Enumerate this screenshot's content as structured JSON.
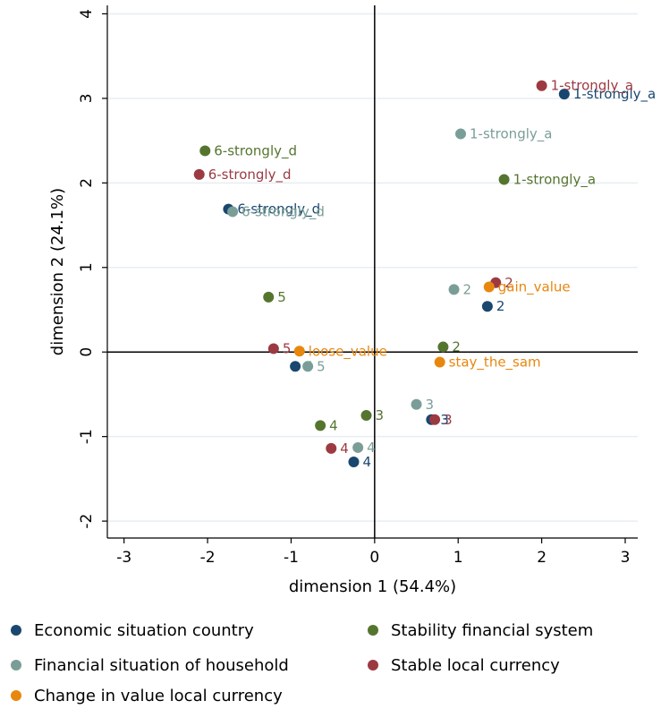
{
  "chart_data": {
    "type": "scatter",
    "xlabel": "dimension 1 (54.4%)",
    "ylabel": "dimension 2 (24.1%)",
    "xlim": [
      -3.2,
      3.15
    ],
    "ylim": [
      -2.2,
      4.1
    ],
    "xticks": [
      -3,
      -2,
      -1,
      0,
      1,
      2,
      3
    ],
    "yticks": [
      -2,
      -1,
      0,
      1,
      2,
      3,
      4
    ],
    "grid": "horizontal",
    "reference_lines": {
      "x": 0,
      "y": 0
    },
    "legend_position": "bottom",
    "series": [
      {
        "name": "Economic situation country",
        "color": "#1a476f",
        "points": [
          {
            "x": 2.27,
            "y": 3.05,
            "label": "1-strongly_a"
          },
          {
            "x": 1.35,
            "y": 0.54,
            "label": "2"
          },
          {
            "x": 0.68,
            "y": -0.8,
            "label": "3"
          },
          {
            "x": -0.25,
            "y": -1.3,
            "label": "4"
          },
          {
            "x": -0.95,
            "y": -0.17,
            "label": "5"
          },
          {
            "x": -1.75,
            "y": 1.69,
            "label": "6-strongly_d"
          }
        ]
      },
      {
        "name": "Stability financial system",
        "color": "#55752f",
        "points": [
          {
            "x": 1.55,
            "y": 2.04,
            "label": "1-strongly_a"
          },
          {
            "x": 0.82,
            "y": 0.06,
            "label": "2"
          },
          {
            "x": -0.1,
            "y": -0.75,
            "label": "3"
          },
          {
            "x": -0.65,
            "y": -0.87,
            "label": "4"
          },
          {
            "x": -1.27,
            "y": 0.65,
            "label": "5"
          },
          {
            "x": -2.03,
            "y": 2.38,
            "label": "6-strongly_d"
          }
        ]
      },
      {
        "name": "Financial situation of household",
        "color": "#7a9e97",
        "points": [
          {
            "x": 1.03,
            "y": 2.58,
            "label": "1-strongly_a"
          },
          {
            "x": 0.95,
            "y": 0.74,
            "label": "2"
          },
          {
            "x": 0.5,
            "y": -0.62,
            "label": "3"
          },
          {
            "x": -0.2,
            "y": -1.13,
            "label": "4"
          },
          {
            "x": -0.8,
            "y": -0.17,
            "label": "5"
          },
          {
            "x": -1.7,
            "y": 1.66,
            "label": "6-strongly_d"
          }
        ]
      },
      {
        "name": "Stable local currency",
        "color": "#9c3a42",
        "points": [
          {
            "x": 2.0,
            "y": 3.15,
            "label": "1-strongly_a"
          },
          {
            "x": 1.45,
            "y": 0.82,
            "label": "2"
          },
          {
            "x": 0.72,
            "y": -0.8,
            "label": "3"
          },
          {
            "x": -0.52,
            "y": -1.14,
            "label": "4"
          },
          {
            "x": -1.21,
            "y": 0.04,
            "label": "5"
          },
          {
            "x": -2.1,
            "y": 2.1,
            "label": "6-strongly_d"
          }
        ]
      },
      {
        "name": "Change in value local currency",
        "color": "#e8870e",
        "points": [
          {
            "x": 1.37,
            "y": 0.77,
            "label": "gain_value"
          },
          {
            "x": 0.78,
            "y": -0.12,
            "label": "stay_the_sam"
          },
          {
            "x": -0.9,
            "y": 0.01,
            "label": "loose_value"
          }
        ]
      }
    ]
  }
}
